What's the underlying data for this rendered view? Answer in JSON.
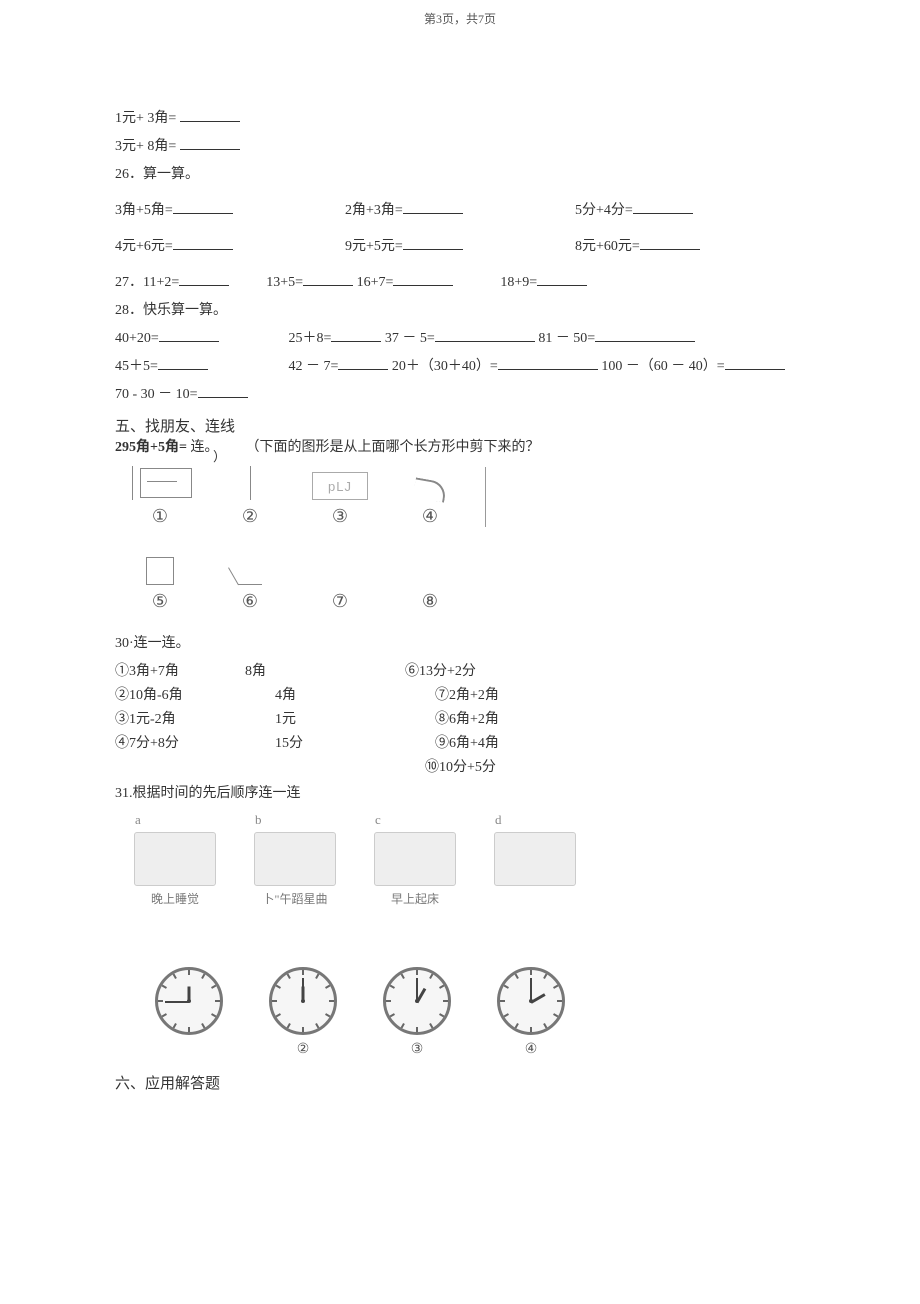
{
  "header": "第3页，共7页",
  "q25": {
    "l1": "1元+ 3角=",
    "l2": "3元+ 8角="
  },
  "q26": {
    "title": "26．算一算。",
    "r1": [
      "3角+5角=",
      "2角+3角=",
      "5分+4分="
    ],
    "r2": [
      "4元+6元=",
      "9元+5元=",
      "8元+60元="
    ]
  },
  "q27": {
    "a": "27．11+2=",
    "b": "13+5=",
    "c": "16+7=",
    "d": "18+9="
  },
  "q28": {
    "title": "28．快乐算一算。",
    "l1a": "40+20=",
    "l1b": "25＋8=",
    "l1c": "37 － 5=",
    "l1d": "81 － 50=",
    "l2a": "45＋5=",
    "l2b": "42 － 7=",
    "l2c": "20＋（30＋40）=",
    "l2d": "100 －（60 － 40）=",
    "l3": "70 - 30 － 10="
  },
  "sec5": {
    "title": "五、找朋友、连线",
    "ov_a": "295角+5角=",
    "ov_b": "连。",
    "ov_c": "（下面的图形是从上面哪个长方形中剪下来的？",
    "ov_d": "）",
    "shape3_text": "pLJ",
    "nums_top": [
      "①",
      "②",
      "③",
      "④"
    ],
    "nums_bot": [
      "⑤",
      "⑥",
      "⑦",
      "⑧"
    ]
  },
  "q30": {
    "title": "30·连一连。",
    "rows": [
      [
        "①3角+7角",
        "8角",
        "⑥13分+2分"
      ],
      [
        "②10角-6角",
        "4角",
        "⑦2角+2角"
      ],
      [
        "③1元-2角",
        "1元",
        "⑧6角+2角"
      ],
      [
        "④7分+8分",
        "15分",
        "⑨6角+4角"
      ]
    ],
    "extra": "⑩10分+5分"
  },
  "q31": {
    "title": "31.根据时间的先后顺序连一连",
    "acts": [
      {
        "top": "a",
        "label": "晚上睡觉"
      },
      {
        "top": "b",
        "label": "卜\"午蹈星曲"
      },
      {
        "top": "c",
        "label": "早上起床"
      },
      {
        "top": "d",
        "label": ""
      }
    ],
    "clocks": [
      {
        "num": "",
        "h": -90,
        "m": -180
      },
      {
        "num": "②",
        "h": -90,
        "m": -90
      },
      {
        "num": "③",
        "h": -60,
        "m": -90
      },
      {
        "num": "④",
        "h": -30,
        "m": -90
      }
    ]
  },
  "sec6": "六、应用解答题"
}
